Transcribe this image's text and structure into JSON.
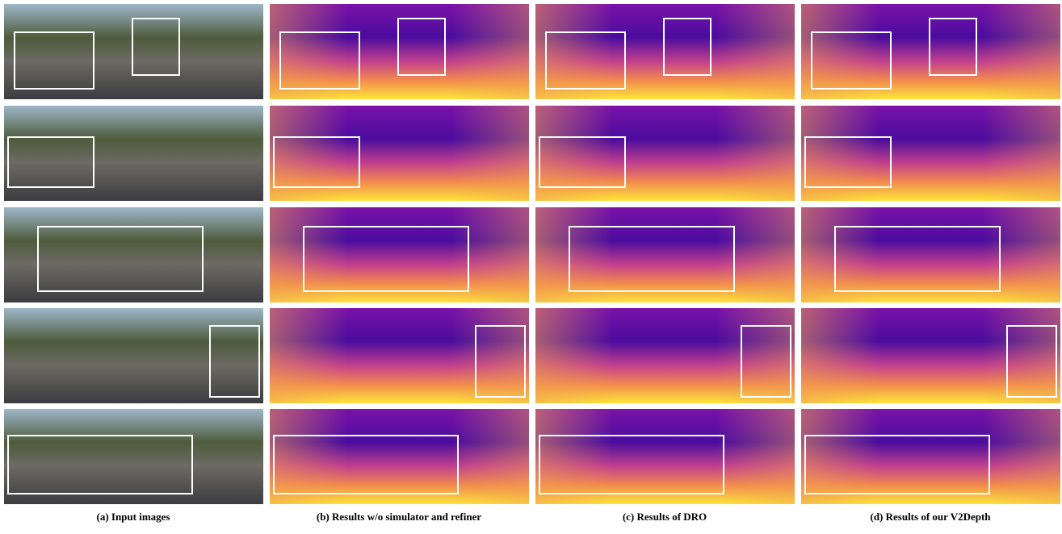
{
  "figure": {
    "captions": [
      "(a) Input images",
      "(b) Results w/o simulator and refiner",
      "(c) Results of DRO",
      "(d) Results of our V2Depth"
    ]
  }
}
